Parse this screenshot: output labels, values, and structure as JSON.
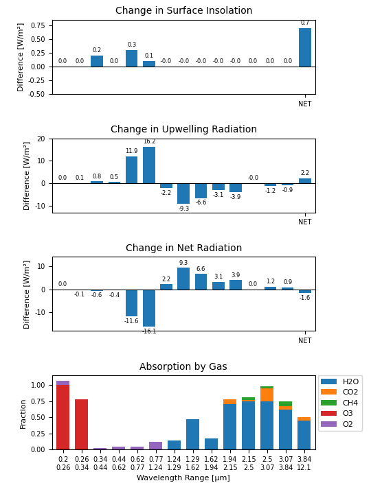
{
  "chart_data": [
    {
      "type": "bar",
      "title": "Change in Surface Insolation",
      "y_label": "Difference [W/m²]",
      "categories": [
        null,
        null,
        null,
        null,
        null,
        null,
        null,
        null,
        null,
        null,
        null,
        null,
        null,
        null,
        "NET"
      ],
      "values": [
        0.0,
        0.0,
        0.2,
        0.0,
        0.3,
        0.1,
        -0.0,
        -0.0,
        -0.0,
        -0.0,
        -0.0,
        0.0,
        0.0,
        0.0,
        0.7
      ],
      "ylim": [
        -0.5,
        0.85
      ],
      "yticks": [
        {
          "value": -0.5,
          "label": "-0.50"
        },
        -0.25,
        {
          "value": 0.0,
          "label": "0.00"
        },
        0.25,
        {
          "value": 0.5,
          "label": "0.50"
        },
        0.75
      ],
      "data_labels": true
    },
    {
      "type": "bar",
      "title": "Change in Upwelling Radiation",
      "y_label": "Difference [W/m²]",
      "categories": [
        null,
        null,
        null,
        null,
        null,
        null,
        null,
        null,
        null,
        null,
        null,
        null,
        null,
        null,
        "NET"
      ],
      "values": [
        0.0,
        0.1,
        0.8,
        0.5,
        11.9,
        16.2,
        -2.2,
        -9.3,
        -6.6,
        -3.1,
        -3.9,
        -0.0,
        -1.2,
        -0.9,
        2.2
      ],
      "ylim": [
        -13,
        20
      ],
      "yticks": [
        -10,
        0,
        10,
        20
      ],
      "data_labels": true
    },
    {
      "type": "bar",
      "title": "Change in Net Radiation",
      "y_label": "Difference [W/m²]",
      "categories": [
        null,
        null,
        null,
        null,
        null,
        null,
        null,
        null,
        null,
        null,
        null,
        null,
        null,
        null,
        "NET"
      ],
      "values": [
        0.0,
        -0.1,
        -0.6,
        -0.4,
        -11.6,
        -16.1,
        2.2,
        9.3,
        6.6,
        3.1,
        3.9,
        0.0,
        1.2,
        0.9,
        -1.6
      ],
      "ylim": [
        -18,
        14
      ],
      "yticks": [
        -10,
        0,
        10
      ],
      "data_labels": true
    },
    {
      "type": "bar",
      "stacked": true,
      "title": "Absorption by Gas",
      "x_label": "Wavelength Range [μm]",
      "y_label": "Fraction",
      "categories": [
        "0.2\n0.26",
        "0.26\n0.34",
        "0.34\n0.44",
        "0.44\n0.62",
        "0.62\n0.77",
        "0.77\n1.24",
        "1.24\n1.29",
        "1.29\n1.62",
        "1.62\n1.94",
        "1.94\n2.15",
        "2.15\n2.5",
        "2.5\n3.07",
        "3.07\n3.84",
        "3.84\n12.1"
      ],
      "series": [
        {
          "name": "H2O",
          "values": [
            0.0,
            0.0,
            0.0,
            0.0,
            0.0,
            0.0,
            0.14,
            0.47,
            0.17,
            0.7,
            0.75,
            0.75,
            0.62,
            0.45
          ]
        },
        {
          "name": "CO2",
          "values": [
            0.0,
            0.0,
            0.0,
            0.0,
            0.0,
            0.0,
            0.0,
            0.0,
            0.0,
            0.08,
            0.02,
            0.2,
            0.05,
            0.05
          ]
        },
        {
          "name": "CH4",
          "values": [
            0.0,
            0.0,
            0.0,
            0.0,
            0.0,
            0.0,
            0.0,
            0.0,
            0.0,
            0.0,
            0.04,
            0.03,
            0.08,
            0.0
          ]
        },
        {
          "name": "O3",
          "values": [
            1.0,
            0.78,
            0.0,
            0.0,
            0.0,
            0.0,
            0.0,
            0.0,
            0.0,
            0.0,
            0.0,
            0.0,
            0.0,
            0.0
          ]
        },
        {
          "name": "O2",
          "values": [
            0.07,
            0.0,
            0.02,
            0.05,
            0.05,
            0.12,
            0.0,
            0.0,
            0.0,
            0.0,
            0.0,
            0.0,
            0.0,
            0.0
          ]
        }
      ],
      "ylim": [
        0,
        1.15
      ],
      "yticks": [
        {
          "value": 0.0,
          "label": "0.00"
        },
        0.25,
        {
          "value": 0.5,
          "label": "0.50"
        },
        0.75,
        {
          "value": 1.0,
          "label": "1.00"
        }
      ],
      "legend": "upper right"
    }
  ]
}
